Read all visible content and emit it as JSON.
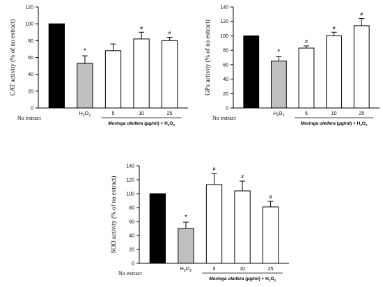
{
  "chart_data": [
    {
      "id": "cat",
      "type": "bar",
      "ylabel": "CAT activity (% of no extract)",
      "ylim": [
        0,
        120
      ],
      "yticks": [
        0,
        20,
        40,
        60,
        80,
        100,
        120
      ],
      "categories": [
        "No extract",
        "H2O2",
        "5",
        "10",
        "25"
      ],
      "values": [
        100,
        53,
        68,
        82,
        80
      ],
      "errors": [
        0,
        9,
        8,
        8,
        4
      ],
      "markers": [
        "",
        "*",
        "",
        "#",
        "#"
      ],
      "group_label": "Moringa oleifera (µg/ml) + H2O2"
    },
    {
      "id": "gpx",
      "type": "bar",
      "ylabel": "GPx activity (% of no extract)",
      "ylim": [
        0,
        140
      ],
      "yticks": [
        0,
        20,
        40,
        60,
        80,
        100,
        120,
        140
      ],
      "categories": [
        "No extract",
        "H2O2",
        "5",
        "10",
        "25"
      ],
      "values": [
        100,
        65,
        83,
        100,
        114
      ],
      "errors": [
        0,
        6,
        3,
        5,
        10
      ],
      "markers": [
        "",
        "*",
        "#",
        "#",
        "#"
      ],
      "group_label": "Moringa oleifera (µg/ml) + H2O2"
    },
    {
      "id": "sod",
      "type": "bar",
      "ylabel": "SOD activity (% of no extract)",
      "ylim": [
        0,
        140
      ],
      "yticks": [
        0,
        20,
        40,
        60,
        80,
        100,
        120,
        140
      ],
      "categories": [
        "No extract",
        "H2O2",
        "5",
        "10",
        "25"
      ],
      "values": [
        100,
        50,
        113,
        104,
        81
      ],
      "errors": [
        0,
        9,
        16,
        14,
        8
      ],
      "markers": [
        "",
        "*",
        "#",
        "#",
        "#"
      ],
      "group_label": "Moringa oleifera (µg/ml) + H2O2"
    }
  ],
  "colors": {
    "control": "#000000",
    "h2o2": "#c0c0c0",
    "extract": "#ffffff",
    "stroke": "#000000"
  }
}
